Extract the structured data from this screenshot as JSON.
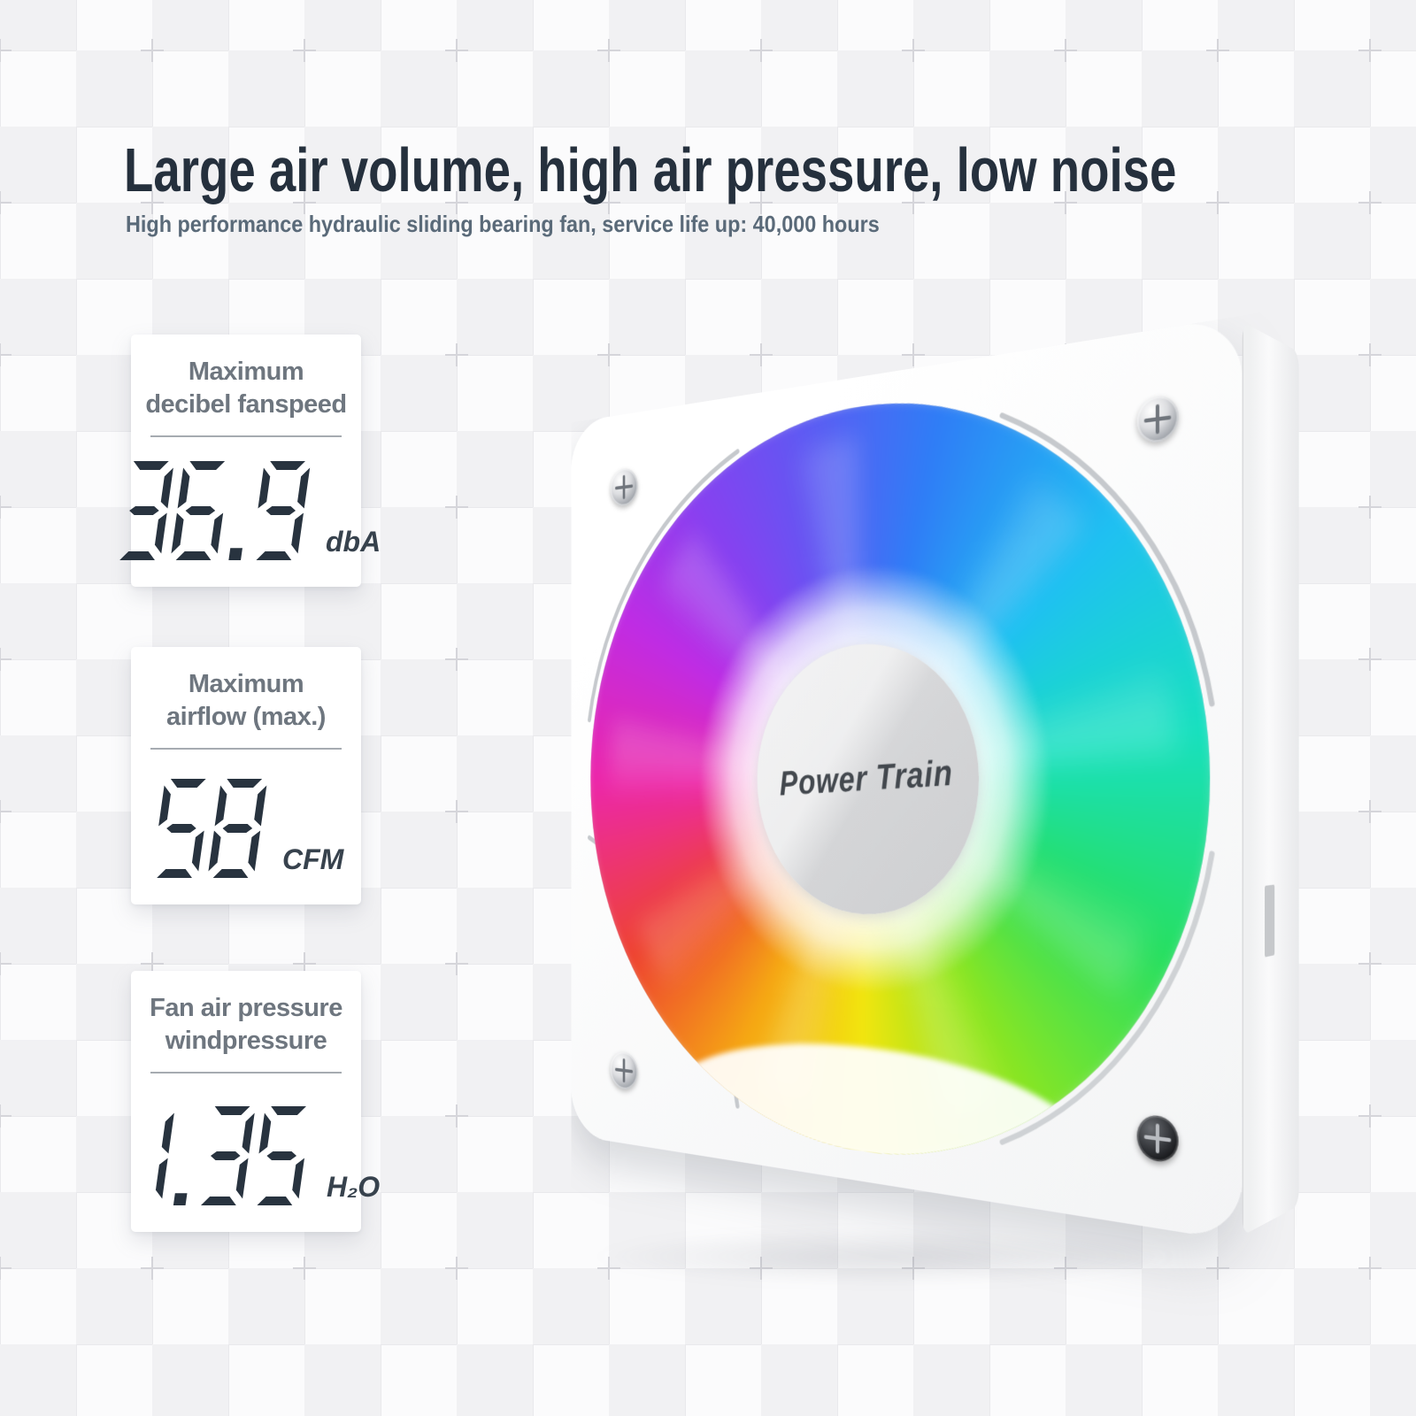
{
  "header": {
    "title": "Large air volume, high air pressure, low noise",
    "subtitle": "High performance hydraulic sliding bearing fan, service life up: 40,000 hours"
  },
  "spec_cards": [
    {
      "title_line1": "Maximum",
      "title_line2": "decibel fanspeed",
      "value": "36.9",
      "unit": "dbA"
    },
    {
      "title_line1": "Maximum",
      "title_line2": "airflow (max.)",
      "value": "58",
      "unit": "CFM"
    },
    {
      "title_line1": "Fan air pressure",
      "title_line2": "windpressure",
      "value": "1.35",
      "unit": "H₂O"
    }
  ],
  "fan": {
    "brand": "Power Train",
    "frame_color": "#ffffff",
    "hub_color": "#d4d5d7",
    "brand_text_color": "#43484e",
    "rgb_ring_colors": [
      "#2f7df6",
      "#1fc0f2",
      "#18e0c0",
      "#27df62",
      "#93e61c",
      "#f2e50f",
      "#f5a713",
      "#ee4430",
      "#ec27ab",
      "#bf2ce4",
      "#8741f0",
      "#6a52f2"
    ]
  },
  "colors": {
    "title_text": "#25303d",
    "subtitle_text": "#5a6a79",
    "card_heading_text": "#6e767f",
    "lcd_value": "#28333f",
    "unit_text": "#37424d",
    "background": "#fbfbfc"
  }
}
